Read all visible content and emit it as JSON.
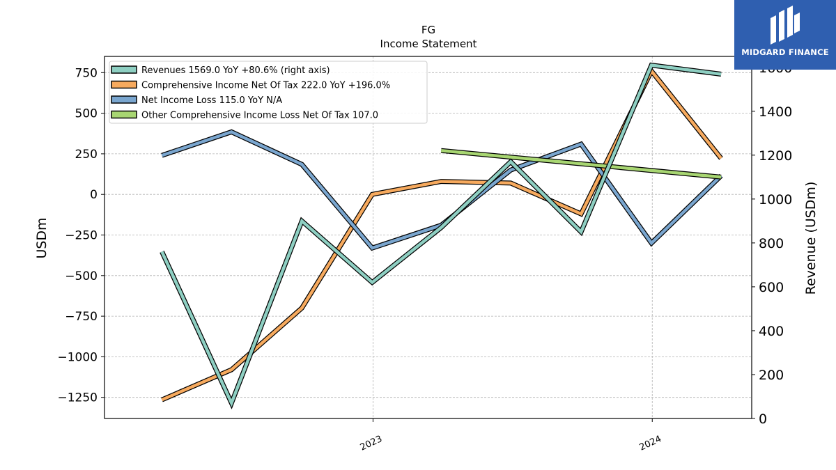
{
  "chart_data": {
    "type": "line",
    "title": "FG",
    "subtitle": "Income Statement",
    "ylabel": "USDm",
    "y2label": "Revenue (USDm)",
    "x_tick_labels": [
      "2023",
      "2024"
    ],
    "x_ticks": [
      "2023-01-01",
      "2024-01-01"
    ],
    "ylim": [
      -1380,
      850
    ],
    "y2lim": [
      0,
      1650
    ],
    "yticks": [
      750,
      500,
      250,
      0,
      -250,
      -500,
      -750,
      -1000,
      -1250
    ],
    "ytick_labels": [
      "750",
      "500",
      "250",
      "0",
      "−250",
      "−500",
      "−750",
      "−1000",
      "−1250"
    ],
    "y2ticks": [
      0,
      200,
      400,
      600,
      800,
      1000,
      1200,
      1400,
      1600
    ],
    "y2tick_labels": [
      "0",
      "200",
      "400",
      "600",
      "800",
      "1000",
      "1200",
      "1400",
      "1600"
    ],
    "grid": true,
    "legend_position": "top-left",
    "series": [
      {
        "name": "Revenues  1569.0 YoY +80.6% (right axis)",
        "axis": "right",
        "color": "#8ecfc2",
        "x": [
          "2022-03-31",
          "2022-06-30",
          "2022-09-30",
          "2022-12-31",
          "2023-03-31",
          "2023-06-30",
          "2023-09-30",
          "2023-12-31",
          "2024-03-31"
        ],
        "values": [
          760,
          70,
          900,
          620,
          870,
          1170,
          850,
          1610,
          1569
        ]
      },
      {
        "name": "Comprehensive Income Net Of Tax  222.0 YoY +196.0%",
        "axis": "left",
        "color": "#f7aa5e",
        "x": [
          "2022-03-31",
          "2022-06-30",
          "2022-09-30",
          "2022-12-31",
          "2023-03-31",
          "2023-06-30",
          "2023-09-30",
          "2023-12-31",
          "2024-03-31"
        ],
        "values": [
          -1265,
          -1080,
          -700,
          0,
          80,
          70,
          -120,
          760,
          222
        ]
      },
      {
        "name": "Net Income Loss  115.0 YoY N/A",
        "axis": "left",
        "color": "#7aa6cf",
        "x": [
          "2022-03-31",
          "2022-06-30",
          "2022-09-30",
          "2022-12-31",
          "2023-03-31",
          "2023-06-30",
          "2023-09-30",
          "2023-12-31",
          "2024-03-31"
        ],
        "values": [
          240,
          385,
          185,
          -330,
          -190,
          150,
          310,
          -300,
          115
        ]
      },
      {
        "name": "Other Comprehensive Income Loss Net Of Tax  107.0",
        "axis": "left",
        "color": "#a8d672",
        "x": [
          "2023-03-31",
          "2024-03-31"
        ],
        "values": [
          270,
          107
        ]
      }
    ]
  },
  "logo": {
    "text": "MIDGARD FINANCE",
    "background": "#2f5fb0"
  }
}
